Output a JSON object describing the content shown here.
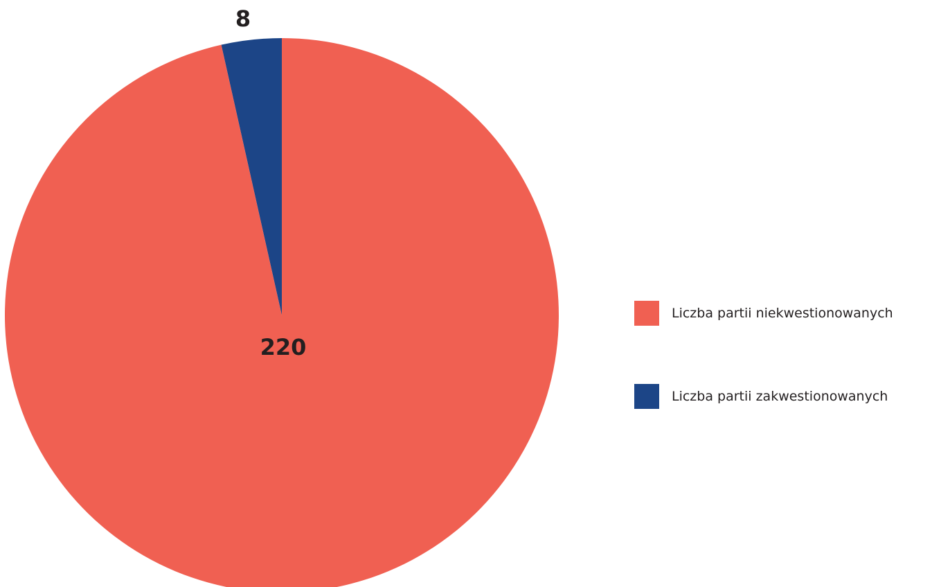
{
  "chart_data": {
    "type": "pie",
    "title": "",
    "slices": [
      {
        "label": "Liczba partii zakwestionowanych",
        "value": 8,
        "color": "#1c4587"
      },
      {
        "label": "Liczba partii niekwestionowanych",
        "value": 220,
        "color": "#f06052"
      }
    ],
    "data_labels": [
      "8",
      "220"
    ],
    "start_angle": "top (12 o'clock)",
    "direction": "counter-clockwise from top",
    "legend_position": "right"
  },
  "legend": {
    "items": [
      {
        "label": "Liczba partii niekwestionowanych",
        "color": "#f06052"
      },
      {
        "label": "Liczba partii zakwestionowanych",
        "color": "#1c4587"
      }
    ]
  }
}
